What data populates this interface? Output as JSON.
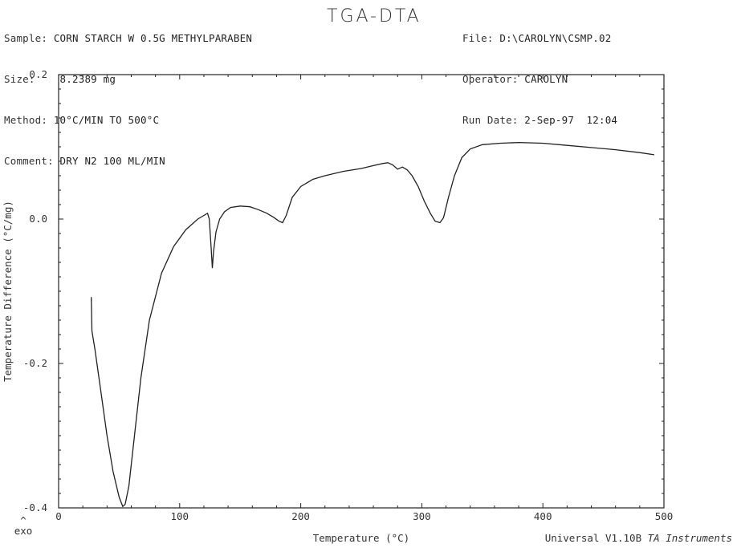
{
  "header": {
    "left": [
      {
        "label": "Sample:",
        "value": "CORN STARCH W 0.5G METHYLPARABEN"
      },
      {
        "label": "Size:",
        "value": "8.2389 mg"
      },
      {
        "label": "Method:",
        "value": "10°C/MIN TO 500°C"
      },
      {
        "label": "Comment:",
        "value": "DRY N2 100 ML/MIN"
      }
    ],
    "title": "TGA-DTA",
    "right": [
      {
        "label": "File:",
        "value": "D:\\CAROLYN\\CSMP.02"
      },
      {
        "label": "Operator:",
        "value": "CAROLYN"
      },
      {
        "label": "Run Date:",
        "value": "2-Sep-97  12:04"
      }
    ]
  },
  "footer": {
    "exo": "exo",
    "caret": "^",
    "software": "Universal V1.10B",
    "vendor": "TA Instruments"
  },
  "chart_data": {
    "type": "line",
    "xlabel": "Temperature (°C)",
    "ylabel": "Temperature Difference (°C/mg)",
    "xlim": [
      0,
      500
    ],
    "ylim": [
      -0.4,
      0.2
    ],
    "xticks": [
      0,
      100,
      200,
      300,
      400,
      500
    ],
    "yticks": [
      -0.4,
      -0.2,
      0.0,
      0.2
    ],
    "ytick_labels": [
      "-0.4",
      "-0.2",
      "0.0",
      "0.2"
    ],
    "grid": false,
    "series": [
      {
        "x": [
          27,
          27.5,
          30,
          35,
          40,
          45,
          50,
          53,
          55,
          58,
          62,
          68,
          75,
          85,
          95,
          105,
          115,
          120,
          123,
          124.5,
          126,
          127,
          128,
          130,
          133,
          137,
          142,
          150,
          158,
          165,
          172,
          178,
          182,
          185,
          188,
          193,
          200,
          210,
          220,
          235,
          250,
          260,
          268,
          272,
          276,
          280,
          284,
          288,
          292,
          297,
          302,
          307,
          311,
          315,
          318,
          322,
          327,
          333,
          340,
          350,
          365,
          380,
          400,
          420,
          440,
          460,
          480,
          492
        ],
        "y": [
          -0.108,
          -0.155,
          -0.18,
          -0.24,
          -0.3,
          -0.35,
          -0.385,
          -0.398,
          -0.395,
          -0.37,
          -0.31,
          -0.22,
          -0.14,
          -0.075,
          -0.038,
          -0.015,
          0.0,
          0.005,
          0.008,
          0.0,
          -0.04,
          -0.068,
          -0.045,
          -0.018,
          0.0,
          0.01,
          0.016,
          0.018,
          0.017,
          0.013,
          0.008,
          0.002,
          -0.003,
          -0.005,
          0.005,
          0.03,
          0.045,
          0.055,
          0.06,
          0.066,
          0.07,
          0.074,
          0.077,
          0.078,
          0.075,
          0.069,
          0.072,
          0.068,
          0.06,
          0.045,
          0.025,
          0.008,
          -0.003,
          -0.005,
          0.002,
          0.03,
          0.06,
          0.085,
          0.097,
          0.103,
          0.105,
          0.106,
          0.105,
          0.102,
          0.099,
          0.096,
          0.092,
          0.089
        ]
      }
    ]
  }
}
